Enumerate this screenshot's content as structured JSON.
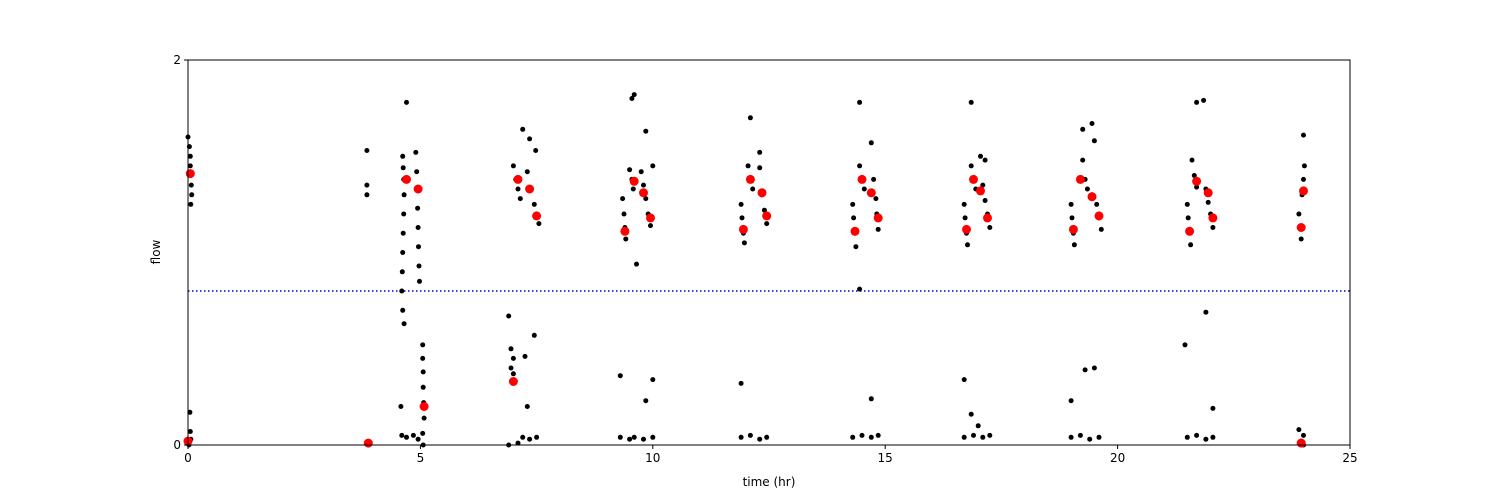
{
  "chart_data": {
    "type": "scatter",
    "title": "",
    "xlabel": "time (hr)",
    "ylabel": "flow",
    "xlim": [
      0,
      25
    ],
    "ylim": [
      0,
      2
    ],
    "xticks": [
      0,
      5,
      10,
      15,
      20,
      25
    ],
    "xtick_labels": [
      "0",
      "5",
      "10",
      "15",
      "20",
      "25"
    ],
    "yticks": [
      0,
      2
    ],
    "ytick_labels": [
      "0",
      "2"
    ],
    "grid": false,
    "legend": "none",
    "threshold_line": {
      "y": 0.8,
      "color": "#0000cc",
      "style": "dotted"
    },
    "series": [
      {
        "color": "#000000",
        "marker": "small-dot",
        "points": [
          [
            0.0,
            1.6
          ],
          [
            0.03,
            1.55
          ],
          [
            0.05,
            1.5
          ],
          [
            0.05,
            1.45
          ],
          [
            0.06,
            1.4
          ],
          [
            0.07,
            1.35
          ],
          [
            0.08,
            1.3
          ],
          [
            0.06,
            1.25
          ],
          [
            0.04,
            0.17
          ],
          [
            0.05,
            0.07
          ],
          [
            0.06,
            0.03
          ],
          [
            0.02,
            0.0
          ],
          [
            3.85,
            1.53
          ],
          [
            3.85,
            1.35
          ],
          [
            3.85,
            1.3
          ],
          [
            3.88,
            0.0
          ],
          [
            4.7,
            1.78
          ],
          [
            4.62,
            1.5
          ],
          [
            4.63,
            1.44
          ],
          [
            4.64,
            1.38
          ],
          [
            4.65,
            1.3
          ],
          [
            4.64,
            1.2
          ],
          [
            4.63,
            1.1
          ],
          [
            4.62,
            1.0
          ],
          [
            4.61,
            0.9
          ],
          [
            4.6,
            0.8
          ],
          [
            4.62,
            0.7
          ],
          [
            4.65,
            0.63
          ],
          [
            4.58,
            0.2
          ],
          [
            4.6,
            0.05
          ],
          [
            4.7,
            0.04
          ],
          [
            4.9,
            1.52
          ],
          [
            4.92,
            1.42
          ],
          [
            4.93,
            1.33
          ],
          [
            4.94,
            1.23
          ],
          [
            4.95,
            1.13
          ],
          [
            4.96,
            1.03
          ],
          [
            4.97,
            0.93
          ],
          [
            4.98,
            0.85
          ],
          [
            4.85,
            0.05
          ],
          [
            4.95,
            0.03
          ],
          [
            5.05,
            0.52
          ],
          [
            5.05,
            0.45
          ],
          [
            5.06,
            0.38
          ],
          [
            5.06,
            0.3
          ],
          [
            5.07,
            0.22
          ],
          [
            5.08,
            0.14
          ],
          [
            5.05,
            0.06
          ],
          [
            5.06,
            0.0
          ],
          [
            6.9,
            0.67
          ],
          [
            6.95,
            0.5
          ],
          [
            7.0,
            0.45
          ],
          [
            6.95,
            0.4
          ],
          [
            7.0,
            0.37
          ],
          [
            7.0,
            1.45
          ],
          [
            7.05,
            1.38
          ],
          [
            7.1,
            1.33
          ],
          [
            7.15,
            1.28
          ],
          [
            7.2,
            1.64
          ],
          [
            7.35,
            1.59
          ],
          [
            7.48,
            1.53
          ],
          [
            7.3,
            1.42
          ],
          [
            7.38,
            1.33
          ],
          [
            7.45,
            1.25
          ],
          [
            7.5,
            1.2
          ],
          [
            7.55,
            1.15
          ],
          [
            7.25,
            0.46
          ],
          [
            7.45,
            0.57
          ],
          [
            7.3,
            0.2
          ],
          [
            7.2,
            0.04
          ],
          [
            7.35,
            0.03
          ],
          [
            7.5,
            0.04
          ],
          [
            6.9,
            0.0
          ],
          [
            7.1,
            0.01
          ],
          [
            9.35,
            1.28
          ],
          [
            9.38,
            1.2
          ],
          [
            9.4,
            1.13
          ],
          [
            9.42,
            1.07
          ],
          [
            9.55,
            1.8
          ],
          [
            9.6,
            1.82
          ],
          [
            9.5,
            1.43
          ],
          [
            9.55,
            1.38
          ],
          [
            9.58,
            1.33
          ],
          [
            9.85,
            1.63
          ],
          [
            9.75,
            1.42
          ],
          [
            9.8,
            1.35
          ],
          [
            9.85,
            1.28
          ],
          [
            9.9,
            1.2
          ],
          [
            9.95,
            1.14
          ],
          [
            10.0,
            1.45
          ],
          [
            9.65,
            0.94
          ],
          [
            9.3,
            0.36
          ],
          [
            10.0,
            0.34
          ],
          [
            9.85,
            0.23
          ],
          [
            9.3,
            0.04
          ],
          [
            9.5,
            0.03
          ],
          [
            9.6,
            0.04
          ],
          [
            9.8,
            0.03
          ],
          [
            10.0,
            0.04
          ],
          [
            11.9,
            1.25
          ],
          [
            11.92,
            1.18
          ],
          [
            11.95,
            1.1
          ],
          [
            11.97,
            1.05
          ],
          [
            12.05,
            1.45
          ],
          [
            12.1,
            1.38
          ],
          [
            12.15,
            1.33
          ],
          [
            12.1,
            1.7
          ],
          [
            12.3,
            1.52
          ],
          [
            12.3,
            1.44
          ],
          [
            12.35,
            1.3
          ],
          [
            12.4,
            1.22
          ],
          [
            12.45,
            1.15
          ],
          [
            11.9,
            0.32
          ],
          [
            11.9,
            0.04
          ],
          [
            12.1,
            0.05
          ],
          [
            12.3,
            0.03
          ],
          [
            12.45,
            0.04
          ],
          [
            14.3,
            1.25
          ],
          [
            14.32,
            1.18
          ],
          [
            14.35,
            1.1
          ],
          [
            14.37,
            1.03
          ],
          [
            14.45,
            1.78
          ],
          [
            14.45,
            1.45
          ],
          [
            14.5,
            1.38
          ],
          [
            14.55,
            1.33
          ],
          [
            14.45,
            0.81
          ],
          [
            14.7,
            1.57
          ],
          [
            14.75,
            1.38
          ],
          [
            14.8,
            1.28
          ],
          [
            14.82,
            1.2
          ],
          [
            14.85,
            1.12
          ],
          [
            14.7,
            0.24
          ],
          [
            14.3,
            0.04
          ],
          [
            14.5,
            0.05
          ],
          [
            14.7,
            0.04
          ],
          [
            14.85,
            0.05
          ],
          [
            16.7,
            1.25
          ],
          [
            16.72,
            1.18
          ],
          [
            16.75,
            1.1
          ],
          [
            16.77,
            1.04
          ],
          [
            16.85,
            1.78
          ],
          [
            16.85,
            1.45
          ],
          [
            16.9,
            1.38
          ],
          [
            16.95,
            1.33
          ],
          [
            17.05,
            1.5
          ],
          [
            17.15,
            1.48
          ],
          [
            17.1,
            1.35
          ],
          [
            17.15,
            1.27
          ],
          [
            17.2,
            1.2
          ],
          [
            17.25,
            1.13
          ],
          [
            16.7,
            0.34
          ],
          [
            16.85,
            0.16
          ],
          [
            17.0,
            0.1
          ],
          [
            16.7,
            0.04
          ],
          [
            16.9,
            0.05
          ],
          [
            17.1,
            0.04
          ],
          [
            17.25,
            0.05
          ],
          [
            19.0,
            1.25
          ],
          [
            19.02,
            1.18
          ],
          [
            19.05,
            1.1
          ],
          [
            19.07,
            1.04
          ],
          [
            19.25,
            1.64
          ],
          [
            19.45,
            1.67
          ],
          [
            19.5,
            1.58
          ],
          [
            19.25,
            1.48
          ],
          [
            19.3,
            1.38
          ],
          [
            19.35,
            1.33
          ],
          [
            19.45,
            1.3
          ],
          [
            19.55,
            1.25
          ],
          [
            19.6,
            1.18
          ],
          [
            19.65,
            1.12
          ],
          [
            19.0,
            0.23
          ],
          [
            19.3,
            0.39
          ],
          [
            19.5,
            0.4
          ],
          [
            19.0,
            0.04
          ],
          [
            19.2,
            0.05
          ],
          [
            19.4,
            0.03
          ],
          [
            19.6,
            0.04
          ],
          [
            21.5,
            1.25
          ],
          [
            21.52,
            1.18
          ],
          [
            21.55,
            1.1
          ],
          [
            21.57,
            1.04
          ],
          [
            21.6,
            1.48
          ],
          [
            21.65,
            1.4
          ],
          [
            21.7,
            1.34
          ],
          [
            21.7,
            1.78
          ],
          [
            21.85,
            1.79
          ],
          [
            21.9,
            1.33
          ],
          [
            21.95,
            1.26
          ],
          [
            22.0,
            1.2
          ],
          [
            22.05,
            1.13
          ],
          [
            21.45,
            0.52
          ],
          [
            21.9,
            0.69
          ],
          [
            22.05,
            0.19
          ],
          [
            21.5,
            0.04
          ],
          [
            21.7,
            0.05
          ],
          [
            21.9,
            0.03
          ],
          [
            22.05,
            0.04
          ],
          [
            23.9,
            1.2
          ],
          [
            23.92,
            1.13
          ],
          [
            23.95,
            1.07
          ],
          [
            23.97,
            1.3
          ],
          [
            24.0,
            1.38
          ],
          [
            24.02,
            1.45
          ],
          [
            24.0,
            1.61
          ],
          [
            23.9,
            0.08
          ],
          [
            24.0,
            0.05
          ],
          [
            23.95,
            0.02
          ],
          [
            24.0,
            0.0
          ]
        ]
      },
      {
        "color": "#ff0000",
        "marker": "large-dot",
        "points": [
          [
            0.05,
            1.41
          ],
          [
            0.0,
            0.02
          ],
          [
            3.88,
            0.01
          ],
          [
            4.7,
            1.38
          ],
          [
            4.95,
            1.33
          ],
          [
            5.08,
            0.2
          ],
          [
            7.0,
            0.33
          ],
          [
            7.1,
            1.38
          ],
          [
            7.35,
            1.33
          ],
          [
            7.5,
            1.19
          ],
          [
            9.4,
            1.11
          ],
          [
            9.6,
            1.37
          ],
          [
            9.8,
            1.31
          ],
          [
            9.95,
            1.18
          ],
          [
            11.95,
            1.12
          ],
          [
            12.1,
            1.38
          ],
          [
            12.35,
            1.31
          ],
          [
            12.45,
            1.19
          ],
          [
            14.35,
            1.11
          ],
          [
            14.5,
            1.38
          ],
          [
            14.7,
            1.31
          ],
          [
            14.85,
            1.18
          ],
          [
            16.75,
            1.12
          ],
          [
            16.9,
            1.38
          ],
          [
            17.05,
            1.32
          ],
          [
            17.2,
            1.18
          ],
          [
            19.05,
            1.12
          ],
          [
            19.2,
            1.38
          ],
          [
            19.45,
            1.29
          ],
          [
            19.6,
            1.19
          ],
          [
            21.55,
            1.11
          ],
          [
            21.7,
            1.37
          ],
          [
            21.95,
            1.31
          ],
          [
            22.05,
            1.18
          ],
          [
            23.95,
            1.13
          ],
          [
            24.0,
            1.32
          ],
          [
            23.95,
            0.01
          ]
        ]
      }
    ]
  }
}
